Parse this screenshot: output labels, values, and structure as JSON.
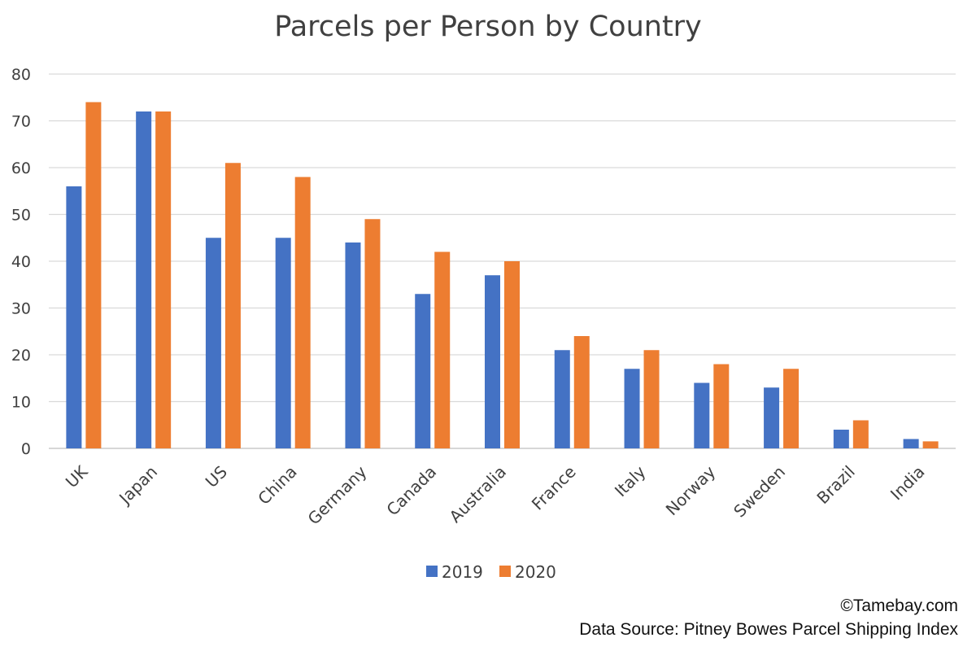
{
  "chart_data": {
    "type": "bar",
    "title": "Parcels per Person by Country",
    "xlabel": "",
    "ylabel": "",
    "ylim": [
      0,
      80
    ],
    "yticks": [
      0,
      10,
      20,
      30,
      40,
      50,
      60,
      70,
      80
    ],
    "grid": true,
    "legend_position": "bottom-center",
    "categories": [
      "UK",
      "Japan",
      "US",
      "China",
      "Germany",
      "Canada",
      "Australia",
      "France",
      "Italy",
      "Norway",
      "Sweden",
      "Brazil",
      "India"
    ],
    "series": [
      {
        "name": "2019",
        "color": "#4472C4",
        "values": [
          56,
          72,
          45,
          45,
          44,
          33,
          37,
          21,
          17,
          14,
          13,
          4,
          2
        ]
      },
      {
        "name": "2020",
        "color": "#ED7D31",
        "values": [
          74,
          72,
          61,
          58,
          49,
          42,
          40,
          24,
          21,
          18,
          17,
          6,
          1.5
        ]
      }
    ]
  },
  "credits": {
    "copyright": "©Tamebay.com",
    "source": "Data Source: Pitney Bowes Parcel Shipping Index"
  }
}
